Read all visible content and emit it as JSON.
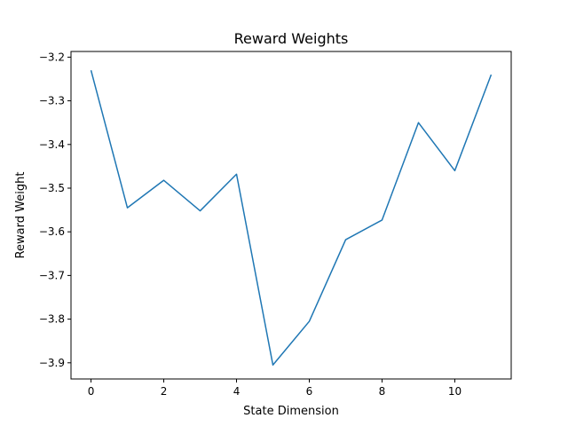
{
  "chart_data": {
    "type": "line",
    "title": "Reward Weights",
    "xlabel": "State Dimension",
    "ylabel": "Reward Weight",
    "xlim": [
      -0.55,
      11.55
    ],
    "ylim": [
      -3.937,
      -3.187
    ],
    "xticks": [
      0,
      2,
      4,
      6,
      8,
      10
    ],
    "xtick_labels": [
      "0",
      "2",
      "4",
      "6",
      "8",
      "10"
    ],
    "yticks": [
      -3.9,
      -3.8,
      -3.7,
      -3.6,
      -3.5,
      -3.4,
      -3.3,
      -3.2
    ],
    "ytick_labels": [
      "−3.9",
      "−3.8",
      "−3.7",
      "−3.6",
      "−3.5",
      "−3.4",
      "−3.3",
      "−3.2"
    ],
    "grid": false,
    "series": [
      {
        "color": "#1f77b4",
        "x": [
          0,
          1,
          2,
          3,
          4,
          5,
          6,
          7,
          8,
          9,
          10,
          11
        ],
        "y": [
          -3.23,
          -3.545,
          -3.482,
          -3.552,
          -3.468,
          -3.905,
          -3.805,
          -3.618,
          -3.573,
          -3.35,
          -3.46,
          -3.24
        ]
      }
    ]
  }
}
